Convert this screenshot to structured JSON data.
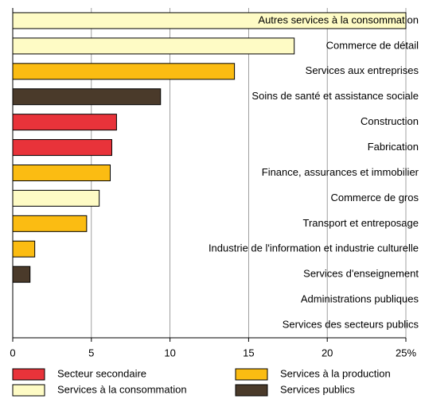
{
  "chart_data": {
    "type": "bar",
    "orientation": "horizontal",
    "categories": [
      "Autres services à la consommation",
      "Commerce de détail",
      "Services aux entreprises",
      "Soins de santé et assistance sociale",
      "Construction",
      "Fabrication",
      "Finance, assurances et immobilier",
      "Commerce de gros",
      "Transport et entreposage",
      "Industrie de l'information et industrie culturelle",
      "Services d'enseignement",
      "Administrations publiques",
      "Services des secteurs publics"
    ],
    "series": [
      {
        "name": "Secteur secondaire",
        "color": "#e8333a",
        "values": [
          null,
          null,
          null,
          null,
          6.6,
          6.3,
          null,
          null,
          null,
          null,
          null,
          null,
          null
        ]
      },
      {
        "name": "Services à la production",
        "color": "#fbbc12",
        "values": [
          null,
          null,
          14.1,
          null,
          null,
          null,
          6.2,
          null,
          4.7,
          1.4,
          null,
          null,
          null
        ]
      },
      {
        "name": "Services à la consommation",
        "color": "#fefbc5",
        "values": [
          25.0,
          17.9,
          null,
          null,
          null,
          null,
          null,
          5.5,
          null,
          null,
          null,
          null,
          null
        ]
      },
      {
        "name": "Services publics",
        "color": "#4a3a2a",
        "values": [
          null,
          null,
          null,
          9.4,
          null,
          null,
          null,
          null,
          null,
          null,
          1.1,
          0,
          0
        ]
      }
    ],
    "xlim": [
      0,
      25
    ],
    "xticks": [
      0,
      5,
      10,
      15,
      20,
      {
        "value": 25,
        "label": "25%"
      }
    ],
    "grid": true
  }
}
